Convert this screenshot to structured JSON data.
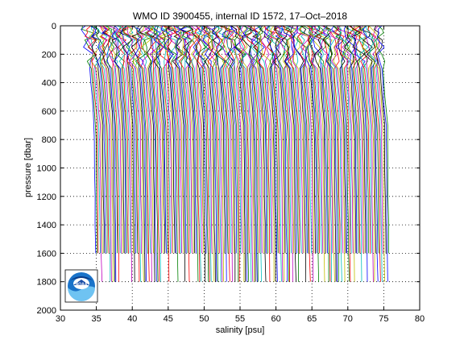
{
  "chart_data": {
    "type": "line",
    "title": "WMO ID 3900455, internal ID 1572, 17–Oct–2018",
    "xlabel": "salinity [psu]",
    "ylabel": "pressure [dbar]",
    "xlim": [
      30,
      80
    ],
    "ylim": [
      0,
      2000
    ],
    "y_reversed": true,
    "grid": true,
    "x_ticks": [
      30,
      35,
      40,
      45,
      50,
      55,
      60,
      65,
      70,
      75,
      80
    ],
    "y_ticks": [
      0,
      200,
      400,
      600,
      800,
      1000,
      1200,
      1400,
      1600,
      1800,
      2000
    ],
    "profiles": {
      "description_offset_start": 34.0,
      "offset_step": 0.2,
      "count": 205,
      "pressure_levels": [
        0,
        25,
        50,
        75,
        100,
        150,
        200,
        250,
        300,
        400,
        500,
        600,
        700,
        800,
        1000,
        1200,
        1400,
        1600,
        1800
      ],
      "colors": [
        "#0000ff",
        "#008000",
        "#ff0000",
        "#00bfbf",
        "#bf00bf",
        "#bfbf00",
        "#000000"
      ]
    }
  },
  "logo": {
    "name": "NOAA",
    "text": "NOAA"
  }
}
